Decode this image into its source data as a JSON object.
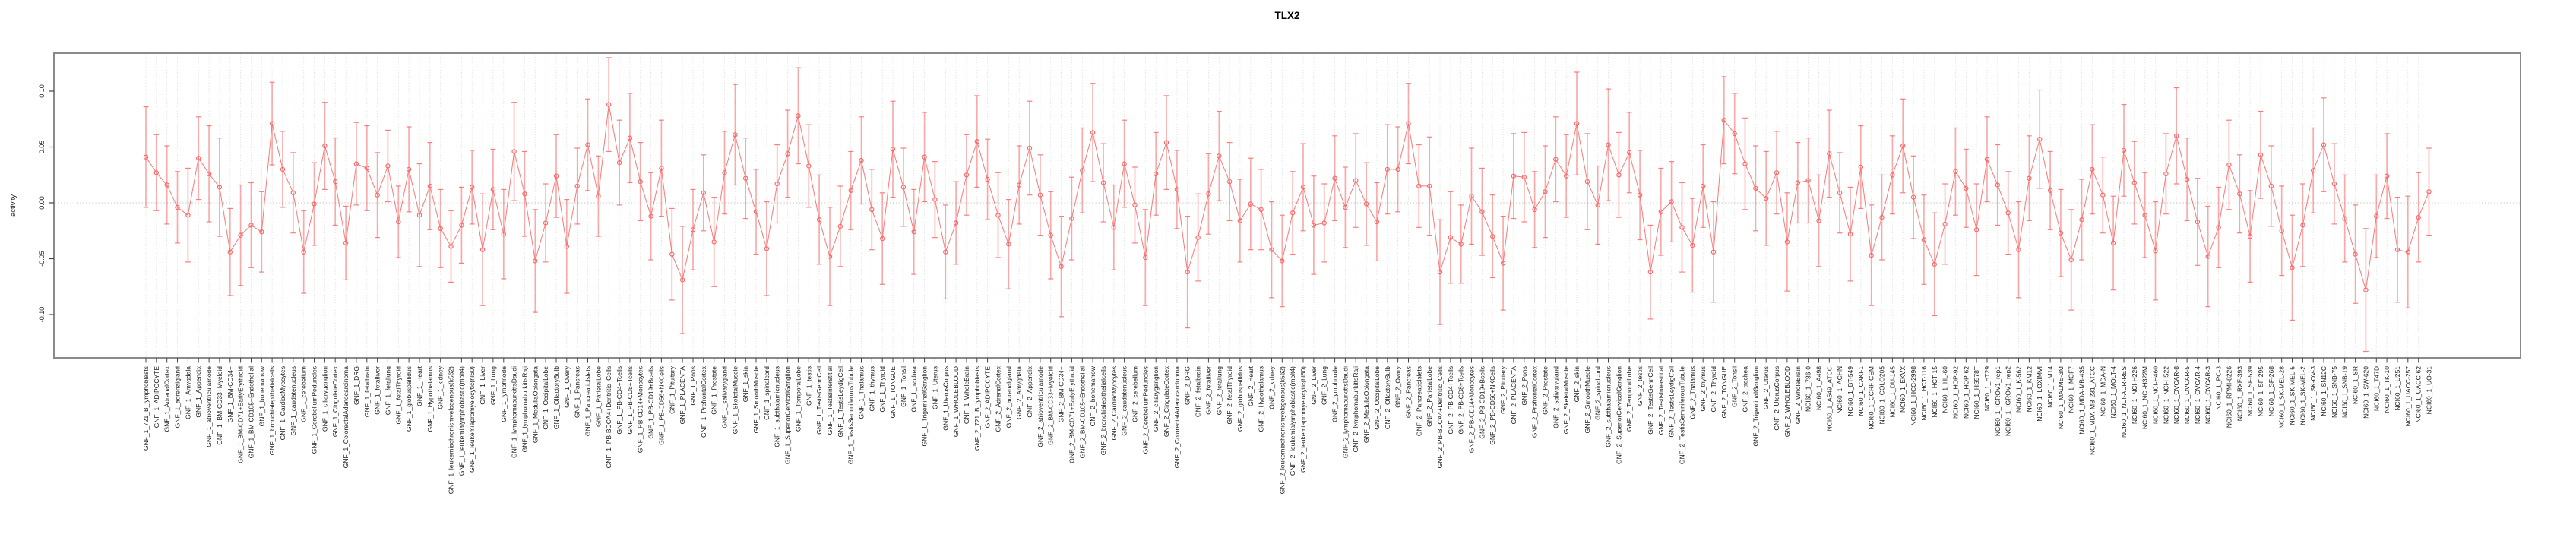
{
  "chart_data": {
    "type": "line",
    "subtype": "points-with-errorbars",
    "title": "TLX2",
    "xlabel": "",
    "ylabel": "activity",
    "yticks": [
      0.1,
      0.05,
      0.0,
      -0.05,
      -0.1
    ],
    "ytick_labels": [
      "0.10",
      "0.05",
      "0.00",
      "-0.05",
      "-0.10"
    ],
    "ylim": [
      -0.138,
      0.135
    ],
    "grid": "dotted vertical line per category, dotted horizontal line at 0",
    "legend_position": "none",
    "colors": {
      "series": "#f96a6a",
      "errorbar_line": "rgba(249,106,106,0.55)",
      "errorbar_cap": "rgba(249,106,106,0.85)",
      "gridline": "#d7d7d7",
      "zero_line": "#c9c9c9",
      "box_border": "#8a8a8a",
      "tick": "#444444",
      "text": "#1a1a1a"
    },
    "categories": [
      "GNF_1_721_B_lymphoblasts",
      "GNF_1_ADIPOCYTE",
      "GNF_1_AdrenalCortex",
      "GNF_1_adrenalgland",
      "GNF_1_Amygdala",
      "GNF_1_Appendix",
      "GNF_1_atrioventricularnode",
      "GNF_1_BM-CD33+Myeloid",
      "GNF_1_BM-CD34+",
      "GNF_1_BM-CD71+EarlyErythroid",
      "GNF_1_BM-CD105+Endothelial",
      "GNF_1_bonemarrow",
      "GNF_1_bronchialepithelialcells",
      "GNF_1_CardiacMyocytes",
      "GNF_1_caudatenucleus",
      "GNF_1_cerebellum",
      "GNF_1_CerebellumPeduncles",
      "GNF_1_ciliaryganglion",
      "GNF_1_CingulateCortex",
      "GNF_1_ColorectalAdenocarcinoma",
      "GNF_1_DRG",
      "GNF_1_fetalbrain",
      "GNF_1_fetalliver",
      "GNF_1_fetallung",
      "GNF_1_fetalThyroid",
      "GNF_1_globuspallidus",
      "GNF_1_Heart",
      "GNF_1_Hypothalamus",
      "GNF_1_kidney",
      "GNF_1_leukemiachronicmyelogenous(k562)",
      "GNF_1_leukemialymphoblastic(molt4)",
      "GNF_1_leukemiapromyelocytic(hl60)",
      "GNF_1_Liver",
      "GNF_1_Lung",
      "GNF_1_lymphnode",
      "GNF_1_lymphomaburkittsDaudi",
      "GNF_1_lymphomaburkittsRaji",
      "GNF_1_MedullaOblongata",
      "GNF_1_OccipitalLobe",
      "GNF_1_OlfactoryBulb",
      "GNF_1_Ovary",
      "GNF_1_Pancreas",
      "GNF_1_PancreaticIslets",
      "GNF_1_ParietalLobe",
      "GNF_1_PB-BDCA4+Dentritic_Cells",
      "GNF_1_PB-CD4+Tcells",
      "GNF_1_PB-CD8+Tcells",
      "GNF_1_PB-CD14+Monocytes",
      "GNF_1_PB-CD19+Bcells",
      "GNF_1_PB-CD56+NKCells",
      "GNF_1_Pituitary",
      "GNF_1_PLACENTA",
      "GNF_1_Pons",
      "GNF_1_PrefrontalCortex",
      "GNF_1_Prostate",
      "GNF_1_salivarygland",
      "GNF_1_SkeletalMuscle",
      "GNF_1_skin",
      "GNF_1_SmoothMuscle",
      "GNF_1_spinalcord",
      "GNF_1_subthalamicnucleus",
      "GNF_1_SuperiorCervicalGanglion",
      "GNF_1_TemporalLobe",
      "GNF_1_testis",
      "GNF_1_TestisGermCell",
      "GNF_1_TestisInterstitial",
      "GNF_1_TestisLeydigCell",
      "GNF_1_TestisSeminiferousTubule",
      "GNF_1_Thalamus",
      "GNF_1_thymus",
      "GNF_1_Thyroid",
      "GNF_1_TONGUE",
      "GNF_1_Tonsil",
      "GNF_1_trachea",
      "GNF_1_TrigeminalGanglion",
      "GNF_1_Uterus",
      "GNF_1_UterusCorpus",
      "GNF_1_WHOLEBLOOD",
      "GNF_1_WholeBrain",
      "GNF_2_721_B_lymphoblasts",
      "GNF_2_ADIPOCYTE",
      "GNF_2_AdrenalCortex",
      "GNF_2_adrenalgland",
      "GNF_2_Amygdala",
      "GNF_2_Appendix",
      "GNF_2_atrioventricularnode",
      "GNF_2_BM-CD33+Myeloid",
      "GNF_2_BM-CD34+",
      "GNF_2_BM-CD71+EarlyErythroid",
      "GNF_2_BM-CD105+Endothelial",
      "GNF_2_bonemarrow",
      "GNF_2_bronchialepithelialcells",
      "GNF_2_CardiacMyocytes",
      "GNF_2_caudatenucleus",
      "GNF_2_cerebellum",
      "GNF_2_CerebellumPeduncles",
      "GNF_2_ciliaryganglion",
      "GNF_2_CingulateCortex",
      "GNF_2_ColorectalAdenocarcinoma",
      "GNF_2_DRG",
      "GNF_2_fetalbrain",
      "GNF_2_fetalliver",
      "GNF_2_fetallung",
      "GNF_2_fetalThyroid",
      "GNF_2_globuspallidus",
      "GNF_2_Heart",
      "GNF_2_Hypothalamus",
      "GNF_2_kidney",
      "GNF_2_leukemiachronicmyelogenous(k562)",
      "GNF_2_leukemialymphoblastic(molt4)",
      "GNF_2_leukemiapromyelocytic(hl60)",
      "GNF_2_Liver",
      "GNF_2_Lung",
      "GNF_2_lymphnode",
      "GNF_2_lymphomaburkittsDaudi",
      "GNF_2_lymphomaburkittsRaji",
      "GNF_2_MedullaOblongata",
      "GNF_2_OccipitalLobe",
      "GNF_2_OlfactoryBulb",
      "GNF_2_Ovary",
      "GNF_2_Pancreas",
      "GNF_2_PancreaticIslets",
      "GNF_2_ParietalLobe",
      "GNF_2_PB-BDCA4+Dentritic_Cells",
      "GNF_2_PB-CD4+Tcells",
      "GNF_2_PB-CD8+Tcells",
      "GNF_2_PB-CD14+Monocytes",
      "GNF_2_PB-CD19+Bcells",
      "GNF_2_PB-CD56+NKCells",
      "GNF_2_Pituitary",
      "GNF_2_PLACENTA",
      "GNF_2_Pons",
      "GNF_2_PrefrontalCortex",
      "GNF_2_Prostate",
      "GNF_2_salivarygland",
      "GNF_2_SkeletalMuscle",
      "GNF_2_skin",
      "GNF_2_SmoothMuscle",
      "GNF_2_spinalcord",
      "GNF_2_subthalamicnucleus",
      "GNF_2_SuperiorCervicalGanglion",
      "GNF_2_TemporalLobe",
      "GNF_2_testis",
      "GNF_2_TestisGermCell",
      "GNF_2_TestisInterstitial",
      "GNF_2_TestisLeydigCell",
      "GNF_2_TestisSeminiferousTubule",
      "GNF_2_Thalamus",
      "GNF_2_thymus",
      "GNF_2_Thyroid",
      "GNF_2_TONGUE",
      "GNF_2_Tonsil",
      "GNF_2_trachea",
      "GNF_2_TrigeminalGanglion",
      "GNF_2_Uterus",
      "GNF_2_UterusCorpus",
      "GNF_2_WHOLEBLOOD",
      "GNF_2_WholeBrain",
      "NCI60_1_786-0",
      "NCI60_1_A498",
      "NCI60_1_A549_ATCC",
      "NCI60_1_ACHN",
      "NCI60_1_BT-549",
      "NCI60_1_CAKI-1",
      "NCI60_1_CCRF-CEM",
      "NCI60_1_COLO205",
      "NCI60_1_DU-145",
      "NCI60_1_EKVX",
      "NCI60_1_HCC-2998",
      "NCI60_1_HCT-116",
      "NCI60_1_HCT-15",
      "NCI60_1_HL-60",
      "NCI60_1_HOP-92",
      "NCI60_1_HOP-62",
      "NCI60_1_HS578T",
      "NCI60_1_HT29",
      "NCI60_1_IGROV1_rep1",
      "NCI60_1_IGROV1_rep2",
      "NCI60_1_K-562",
      "NCI60_1_KM12",
      "NCI60_1_LOXIMVI",
      "NCI60_1_M14",
      "NCI60_1_MALME-3M",
      "NCI60_1_MCF7",
      "NCI60_1_MDA-MB-435",
      "NCI60_1_MDA-MB-231_ATCC",
      "NCI60_1_MDA-N",
      "NCI60_1_MOLT-4",
      "NCI60_1_NCI-ADR-RES",
      "NCI60_1_NCI-H226",
      "NCI60_1_NCI-H322M",
      "NCI60_1_NCI-H460",
      "NCI60_1_NCI-H522",
      "NCI60_1_OVCAR-8",
      "NCI60_1_OVCAR-5",
      "NCI60_1_OVCAR-4",
      "NCI60_1_OVCAR-3",
      "NCI60_1_PC-3",
      "NCI60_1_RPMI-8226",
      "NCI60_1_RXF-393",
      "NCI60_1_SF-539",
      "NCI60_1_SF-295",
      "NCI60_1_SF-268",
      "NCI60_1_SK-MEL-28",
      "NCI60_1_SK-MEL-5",
      "NCI60_1_SK-MEL-2",
      "NCI60_1_SK-OV-3",
      "NCI60_1_SN12C",
      "NCI60_1_SNB-75",
      "NCI60_1_SNB-19",
      "NCI60_1_SR",
      "NCI60_1_SW-620",
      "NCI60_1_T47D",
      "NCI60_1_TK-10",
      "NCI60_1_U251",
      "NCI60_1_UACC-257",
      "NCI60_1_UACC-62",
      "NCI60_1_UO-31"
    ],
    "series": [
      {
        "name": "activity",
        "values": [
          0.041,
          0.027,
          0.016,
          -0.004,
          -0.011,
          0.04,
          0.026,
          0.014,
          -0.044,
          -0.029,
          -0.02,
          -0.026,
          0.071,
          0.03,
          0.009,
          -0.044,
          -0.001,
          0.051,
          0.019,
          -0.036,
          0.035,
          0.031,
          0.007,
          0.033,
          -0.017,
          0.03,
          -0.011,
          0.015,
          -0.023,
          -0.039,
          -0.02,
          0.014,
          -0.042,
          0.012,
          -0.028,
          0.046,
          0.008,
          -0.052,
          -0.018,
          0.024,
          -0.039,
          0.015,
          0.052,
          0.006,
          0.088,
          0.036,
          0.058,
          0.019,
          -0.012,
          0.031,
          -0.046,
          -0.069,
          -0.024,
          0.009,
          -0.035,
          0.027,
          0.061,
          0.022,
          -0.008,
          -0.041,
          0.017,
          0.044,
          0.078,
          0.033,
          -0.015,
          -0.048,
          -0.021,
          0.011,
          0.038,
          -0.006,
          -0.032,
          0.048,
          0.014,
          -0.026,
          0.041,
          0.003,
          -0.044,
          -0.018,
          0.025,
          0.055,
          0.021,
          -0.011,
          -0.037,
          0.016,
          0.049,
          0.007,
          -0.029,
          -0.057,
          -0.014,
          0.029,
          0.063,
          0.018,
          -0.022,
          0.035,
          -0.002,
          -0.049,
          0.026,
          0.054,
          0.012,
          -0.062,
          -0.031,
          0.008,
          0.042,
          0.019,
          -0.016,
          -0.001,
          -0.006,
          -0.042,
          -0.052,
          -0.009,
          0.014,
          -0.02,
          -0.018,
          0.022,
          -0.004,
          0.02,
          -0.001,
          -0.017,
          0.03,
          0.03,
          0.071,
          0.015,
          0.015,
          -0.062,
          -0.031,
          -0.037,
          0.006,
          -0.008,
          -0.03,
          -0.054,
          0.024,
          0.023,
          -0.006,
          0.01,
          0.039,
          0.024,
          0.071,
          0.019,
          -0.002,
          0.052,
          0.025,
          0.045,
          0.007,
          -0.062,
          -0.008,
          0.001,
          -0.022,
          -0.038,
          0.015,
          -0.044,
          0.074,
          0.062,
          0.035,
          0.013,
          0.004,
          0.027,
          -0.035,
          0.018,
          0.02,
          -0.016,
          0.044,
          0.009,
          -0.028,
          0.032,
          -0.047,
          -0.013,
          0.025,
          0.051,
          0.005,
          -0.033,
          -0.055,
          -0.019,
          0.028,
          0.013,
          -0.024,
          0.039,
          0.016,
          -0.009,
          -0.042,
          0.022,
          0.057,
          0.011,
          -0.027,
          -0.051,
          -0.015,
          0.03,
          0.007,
          -0.036,
          0.047,
          0.018,
          -0.011,
          -0.043,
          0.026,
          0.06,
          0.021,
          -0.017,
          -0.048,
          -0.022,
          0.034,
          0.008,
          -0.03,
          0.043,
          0.015,
          -0.025,
          -0.058,
          -0.02,
          0.029,
          0.052,
          0.017,
          -0.014,
          -0.046,
          -0.078,
          -0.012,
          0.024,
          -0.042,
          -0.044,
          -0.013,
          0.01
        ],
        "errors": [
          0.045,
          0.034,
          0.035,
          0.032,
          0.042,
          0.037,
          0.043,
          0.044,
          0.039,
          0.045,
          0.038,
          0.036,
          0.037,
          0.034,
          0.036,
          0.037,
          0.037,
          0.039,
          0.039,
          0.033,
          0.037,
          0.038,
          0.038,
          0.032,
          0.032,
          0.038,
          0.046,
          0.039,
          0.035,
          0.032,
          0.034,
          0.033,
          0.05,
          0.036,
          0.04,
          0.044,
          0.038,
          0.046,
          0.035,
          0.037,
          0.042,
          0.034,
          0.041,
          0.036,
          0.042,
          0.038,
          0.04,
          0.035,
          0.039,
          0.043,
          0.041,
          0.048,
          0.036,
          0.034,
          0.04,
          0.037,
          0.045,
          0.036,
          0.038,
          0.042,
          0.035,
          0.039,
          0.043,
          0.037,
          0.04,
          0.044,
          0.036,
          0.035,
          0.039,
          0.036,
          0.041,
          0.043,
          0.035,
          0.038,
          0.04,
          0.034,
          0.042,
          0.037,
          0.036,
          0.041,
          0.036,
          0.038,
          0.04,
          0.035,
          0.042,
          0.036,
          0.039,
          0.045,
          0.037,
          0.038,
          0.044,
          0.035,
          0.038,
          0.039,
          0.034,
          0.043,
          0.037,
          0.042,
          0.035,
          0.05,
          0.039,
          0.036,
          0.04,
          0.035,
          0.037,
          0.041,
          0.036,
          0.043,
          0.041,
          0.037,
          0.039,
          0.044,
          0.035,
          0.038,
          0.036,
          0.042,
          0.037,
          0.035,
          0.04,
          0.038,
          0.036,
          0.037,
          0.044,
          0.047,
          0.041,
          0.035,
          0.043,
          0.039,
          0.037,
          0.042,
          0.038,
          0.04,
          0.034,
          0.041,
          0.038,
          0.037,
          0.046,
          0.043,
          0.035,
          0.05,
          0.038,
          0.036,
          0.04,
          0.042,
          0.039,
          0.036,
          0.04,
          0.042,
          0.037,
          0.045,
          0.039,
          0.036,
          0.041,
          0.038,
          0.042,
          0.037,
          0.044,
          0.036,
          0.038,
          0.041,
          0.039,
          0.036,
          0.042,
          0.037,
          0.045,
          0.038,
          0.035,
          0.042,
          0.037,
          0.04,
          0.046,
          0.036,
          0.039,
          0.035,
          0.041,
          0.038,
          0.036,
          0.037,
          0.043,
          0.038,
          0.044,
          0.035,
          0.039,
          0.045,
          0.036,
          0.04,
          0.034,
          0.042,
          0.041,
          0.037,
          0.038,
          0.044,
          0.036,
          0.043,
          0.037,
          0.039,
          0.045,
          0.036,
          0.04,
          0.035,
          0.041,
          0.039,
          0.036,
          0.04,
          0.047,
          0.037,
          0.038,
          0.042,
          0.036,
          0.039,
          0.044,
          0.055,
          0.037,
          0.038,
          0.047,
          0.05,
          0.04,
          0.039
        ]
      }
    ]
  },
  "layout_note": "point estimates with error bars; values estimated visually from plot"
}
